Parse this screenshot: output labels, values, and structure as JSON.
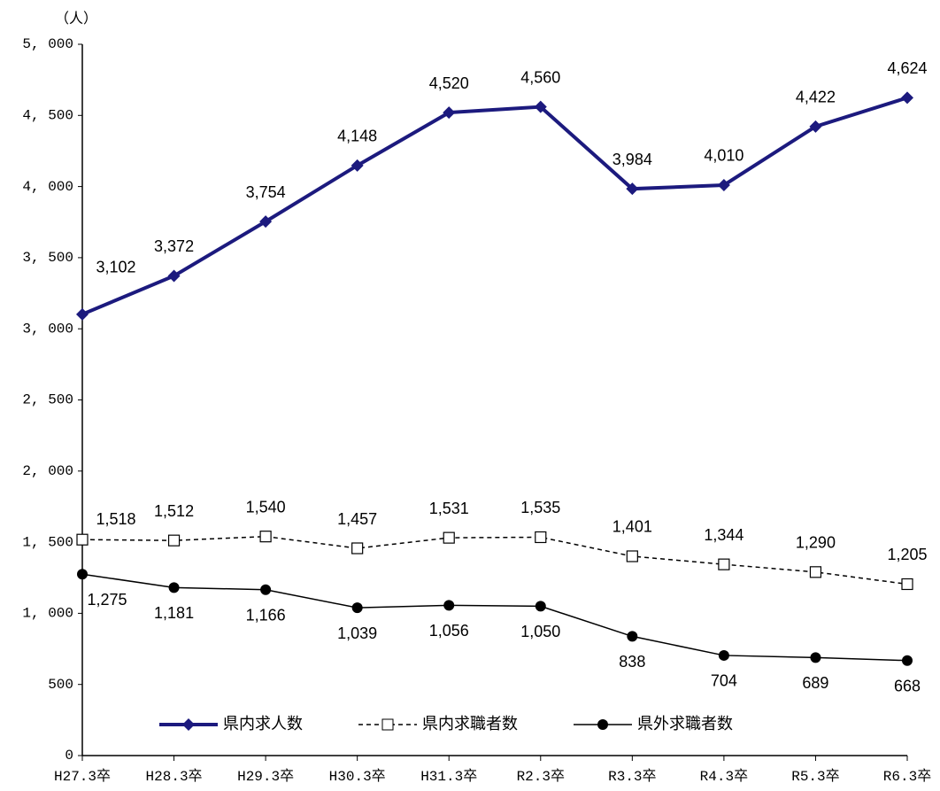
{
  "chart_data": {
    "type": "line",
    "y_unit_label": "（人）",
    "categories": [
      "H27.3卒",
      "H28.3卒",
      "H29.3卒",
      "H30.3卒",
      "H31.3卒",
      "R2.3卒",
      "R3.3卒",
      "R4.3卒",
      "R5.3卒",
      "R6.3卒"
    ],
    "series": [
      {
        "name": "県内求人数",
        "color": "#1c1a7e",
        "marker": "diamond",
        "dash": false,
        "values": [
          3102,
          3372,
          3754,
          4148,
          4520,
          4560,
          3984,
          4010,
          4422,
          4624
        ],
        "value_labels": [
          "3,102",
          "3,372",
          "3,754",
          "4,148",
          "4,520",
          "4,560",
          "3,984",
          "4,010",
          "4,422",
          "4,624"
        ]
      },
      {
        "name": "県内求職者数",
        "color": "#000000",
        "marker": "square",
        "dash": true,
        "values": [
          1518,
          1512,
          1540,
          1457,
          1531,
          1535,
          1401,
          1344,
          1290,
          1205
        ],
        "value_labels": [
          "1,518",
          "1,512",
          "1,540",
          "1,457",
          "1,531",
          "1,535",
          "1,401",
          "1,344",
          "1,290",
          "1,205"
        ]
      },
      {
        "name": "県外求職者数",
        "color": "#000000",
        "marker": "circle",
        "dash": false,
        "values": [
          1275,
          1181,
          1166,
          1039,
          1056,
          1050,
          838,
          704,
          689,
          668
        ],
        "value_labels": [
          "1,275",
          "1,181",
          "1,166",
          "1,039",
          "1,056",
          "1,050",
          "838",
          "704",
          "689",
          "668"
        ]
      }
    ],
    "ylim": [
      0,
      5000
    ],
    "yticks": [
      0,
      500,
      {
        "value": 1000,
        "label": "1, 000"
      },
      {
        "value": 1500,
        "label": "1, 500"
      },
      {
        "value": 2000,
        "label": "2, 000"
      },
      {
        "value": 2500,
        "label": "2, 500"
      },
      {
        "value": 3000,
        "label": "3, 000"
      },
      {
        "value": 3500,
        "label": "3, 500"
      },
      {
        "value": 4000,
        "label": "4, 000"
      },
      {
        "value": 4500,
        "label": "4, 500"
      },
      {
        "value": 5000,
        "label": "5, 000"
      }
    ],
    "grid": false
  }
}
